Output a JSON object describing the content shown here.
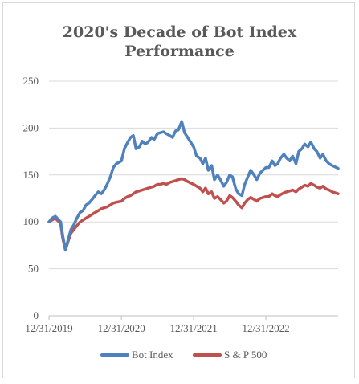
{
  "chart_data": {
    "type": "line",
    "title_line1": "2020's Decade of Bot Index",
    "title_line2": "Performance",
    "xlabel": "",
    "ylabel": "",
    "ylim": [
      0,
      250
    ],
    "yticks": [
      0,
      50,
      100,
      150,
      200,
      250
    ],
    "xlim": [
      "2019-12-31",
      "2023-12-31"
    ],
    "xticks": [
      "12/31/2019",
      "12/31/2020",
      "12/31/2021",
      "12/31/2022"
    ],
    "grid": "horizontal",
    "legend": "bottom",
    "x": [
      "2019-12-31",
      "2020-01-15",
      "2020-02-01",
      "2020-02-15",
      "2020-02-28",
      "2020-03-10",
      "2020-03-23",
      "2020-04-07",
      "2020-04-20",
      "2020-05-05",
      "2020-05-20",
      "2020-06-05",
      "2020-06-20",
      "2020-07-05",
      "2020-07-20",
      "2020-08-05",
      "2020-08-20",
      "2020-09-05",
      "2020-09-20",
      "2020-10-05",
      "2020-10-20",
      "2020-11-05",
      "2020-11-20",
      "2020-12-05",
      "2020-12-31",
      "2021-01-15",
      "2021-02-01",
      "2021-02-15",
      "2021-03-01",
      "2021-03-15",
      "2021-04-01",
      "2021-04-15",
      "2021-05-01",
      "2021-05-15",
      "2021-06-01",
      "2021-06-15",
      "2021-07-01",
      "2021-07-15",
      "2021-08-01",
      "2021-08-15",
      "2021-09-01",
      "2021-09-15",
      "2021-10-01",
      "2021-10-15",
      "2021-11-01",
      "2021-11-15",
      "2021-12-01",
      "2021-12-31",
      "2022-01-15",
      "2022-02-01",
      "2022-02-15",
      "2022-03-01",
      "2022-03-15",
      "2022-04-01",
      "2022-04-15",
      "2022-05-01",
      "2022-05-15",
      "2022-06-01",
      "2022-06-15",
      "2022-07-01",
      "2022-07-15",
      "2022-08-01",
      "2022-08-15",
      "2022-09-01",
      "2022-09-15",
      "2022-10-01",
      "2022-10-15",
      "2022-11-01",
      "2022-11-15",
      "2022-12-01",
      "2022-12-31",
      "2023-01-15",
      "2023-02-01",
      "2023-02-15",
      "2023-03-01",
      "2023-03-15",
      "2023-04-01",
      "2023-04-15",
      "2023-05-01",
      "2023-05-15",
      "2023-06-01",
      "2023-06-15",
      "2023-07-01",
      "2023-07-15",
      "2023-08-01",
      "2023-08-15",
      "2023-09-01",
      "2023-09-15",
      "2023-10-01",
      "2023-10-15",
      "2023-11-01",
      "2023-11-15",
      "2023-12-01",
      "2023-12-31"
    ],
    "series": [
      {
        "name": "Bot Index",
        "color": "#4f81bd",
        "values": [
          100,
          104,
          106,
          103,
          100,
          85,
          70,
          82,
          92,
          97,
          104,
          110,
          112,
          118,
          120,
          124,
          128,
          132,
          130,
          134,
          140,
          148,
          158,
          162,
          165,
          178,
          185,
          190,
          192,
          178,
          180,
          186,
          183,
          185,
          190,
          188,
          194,
          195,
          196,
          194,
          192,
          190,
          197,
          198,
          207,
          195,
          190,
          180,
          170,
          168,
          162,
          168,
          155,
          160,
          145,
          150,
          145,
          138,
          142,
          150,
          148,
          135,
          130,
          128,
          140,
          148,
          155,
          150,
          145,
          152,
          158,
          158,
          165,
          160,
          162,
          168,
          172,
          168,
          165,
          170,
          162,
          175,
          178,
          183,
          180,
          185,
          178,
          175,
          168,
          172,
          165,
          162,
          160,
          157
        ]
      },
      {
        "name": "S & P 500",
        "color": "#c0504d",
        "values": [
          100,
          102,
          104,
          101,
          98,
          82,
          70,
          80,
          88,
          92,
          96,
          100,
          102,
          104,
          106,
          108,
          110,
          112,
          114,
          115,
          116,
          118,
          120,
          121,
          122,
          125,
          127,
          128,
          130,
          132,
          133,
          134,
          135,
          136,
          137,
          138,
          140,
          140,
          141,
          140,
          142,
          143,
          144,
          145,
          146,
          145,
          143,
          140,
          138,
          136,
          132,
          136,
          130,
          132,
          125,
          127,
          124,
          120,
          122,
          128,
          126,
          122,
          118,
          115,
          120,
          124,
          126,
          124,
          122,
          125,
          127,
          127,
          130,
          128,
          127,
          129,
          131,
          132,
          133,
          134,
          132,
          135,
          137,
          139,
          138,
          141,
          139,
          137,
          136,
          138,
          135,
          134,
          132,
          130
        ]
      }
    ]
  }
}
